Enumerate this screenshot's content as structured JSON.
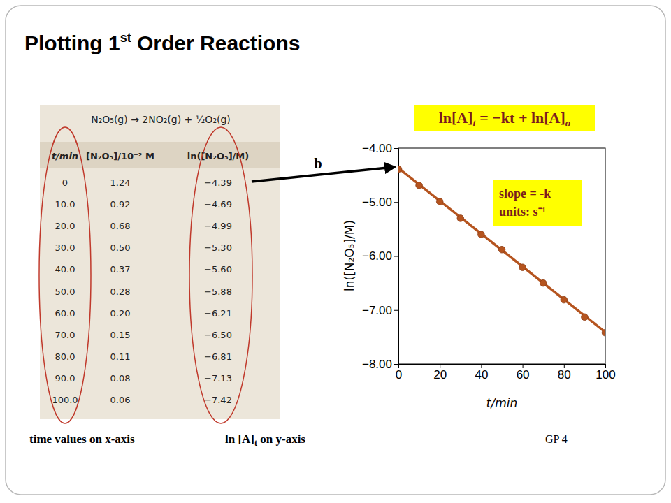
{
  "slide": {
    "title": [
      "Plotting 1",
      "st",
      " Order Reactions"
    ],
    "reaction": "N₂O₅(g) → 2NO₂(g) + ½O₂(g)",
    "table": {
      "header": [
        "t/min",
        "[N₂O₅]/10⁻² M",
        "ln([N₂O₅]/M)"
      ],
      "rows": [
        [
          "0",
          "1.24",
          "−4.39"
        ],
        [
          "10.0",
          "0.92",
          "−4.69"
        ],
        [
          "20.0",
          "0.68",
          "−4.99"
        ],
        [
          "30.0",
          "0.50",
          "−5.30"
        ],
        [
          "40.0",
          "0.37",
          "−5.60"
        ],
        [
          "50.0",
          "0.28",
          "−5.88"
        ],
        [
          "60.0",
          "0.20",
          "−6.21"
        ],
        [
          "70.0",
          "0.15",
          "−6.50"
        ],
        [
          "80.0",
          "0.11",
          "−6.81"
        ],
        [
          "90.0",
          "0.08",
          "−7.13"
        ],
        [
          "100.0",
          "0.06",
          "−7.42"
        ]
      ]
    },
    "equation": [
      "ln[A]",
      "t",
      " = −kt + ln[A]",
      "o"
    ],
    "arrow_label": "b",
    "slope_note": [
      "slope = -k",
      "units: s⁻¹"
    ],
    "x_note": "time values on x-axis",
    "y_note": [
      "ln [A]",
      "t",
      " on y-axis"
    ],
    "footer": "GP 4"
  },
  "chart_data": {
    "type": "scatter",
    "x_label": "t/min",
    "y_label": "ln([N₂O₅]/M)",
    "x": [
      0,
      10,
      20,
      30,
      40,
      50,
      60,
      70,
      80,
      90,
      100
    ],
    "series": [
      {
        "type": "scatter",
        "marker": "circle",
        "color": "#b5541f",
        "values": [
          -4.39,
          -4.69,
          -4.99,
          -5.3,
          -5.6,
          -5.88,
          -6.21,
          -6.5,
          -6.81,
          -7.13,
          -7.42
        ]
      },
      {
        "type": "line",
        "line_style": "solid",
        "color": "#b5541f",
        "x": [
          0,
          100
        ],
        "values": [
          -4.37,
          -7.41
        ]
      }
    ],
    "xlim": [
      0,
      100
    ],
    "xticks": [
      0,
      20,
      40,
      60,
      80,
      100
    ],
    "ylim": [
      -8,
      -4
    ],
    "yticks": [
      {
        "value": -8,
        "label": "−8.00"
      },
      {
        "value": -7,
        "label": "−7.00"
      },
      {
        "value": -6,
        "label": "−6.00"
      },
      {
        "value": -5,
        "label": "−5.00"
      },
      {
        "value": -4,
        "label": "−4.00"
      }
    ]
  }
}
